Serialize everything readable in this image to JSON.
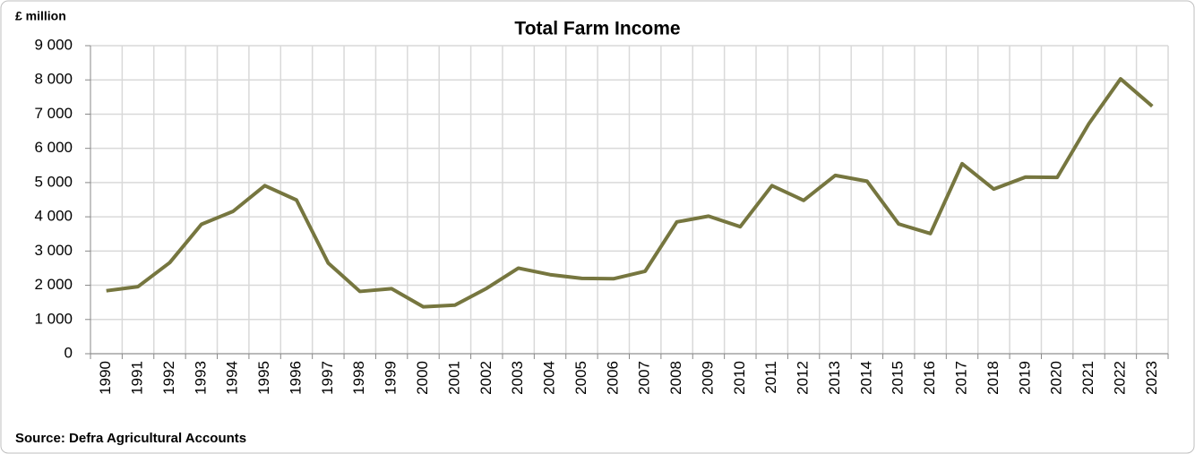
{
  "chart_data": {
    "type": "line",
    "title": "Total Farm Income",
    "y_label": "£ million",
    "source": "Source: Defra Agricultural Accounts",
    "categories": [
      "1990",
      "1991",
      "1992",
      "1993",
      "1994",
      "1995",
      "1996",
      "1997",
      "1998",
      "1999",
      "2000",
      "2001",
      "2002",
      "2003",
      "2004",
      "2005",
      "2006",
      "2007",
      "2008",
      "2009",
      "2010",
      "2011",
      "2012",
      "2013",
      "2014",
      "2015",
      "2016",
      "2017",
      "2018",
      "2019",
      "2020",
      "2021",
      "2022",
      "2023"
    ],
    "values": [
      1840,
      1960,
      2660,
      3780,
      4160,
      4910,
      4490,
      2650,
      1820,
      1900,
      1370,
      1420,
      1910,
      2500,
      2310,
      2200,
      2190,
      2410,
      3850,
      4020,
      3710,
      4910,
      4480,
      5210,
      5040,
      3790,
      3510,
      5550,
      4810,
      5160,
      5150,
      6720,
      8030,
      7230
    ],
    "color": "#76763f",
    "ylim": [
      0,
      9000
    ],
    "yticks": [
      0,
      {
        "value": 1000,
        "label": "1 000"
      },
      {
        "value": 2000,
        "label": "2 000"
      },
      {
        "value": 3000,
        "label": "3 000"
      },
      {
        "value": 4000,
        "label": "4 000"
      },
      {
        "value": 5000,
        "label": "5 000"
      },
      {
        "value": 6000,
        "label": "6 000"
      },
      {
        "value": 7000,
        "label": "7 000"
      },
      {
        "value": 8000,
        "label": "8 000"
      },
      {
        "value": 9000,
        "label": "9 000"
      }
    ],
    "grid": true
  }
}
